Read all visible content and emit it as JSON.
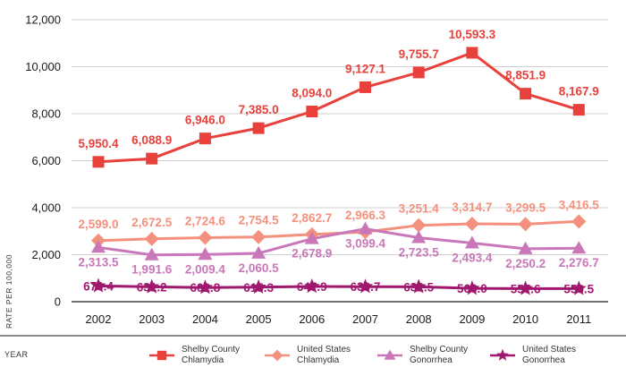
{
  "chart_data": {
    "type": "line",
    "xlabel": "YEAR",
    "ylabel": "RATE PER 100,000",
    "ylim": [
      0,
      12000
    ],
    "yticks": [
      0,
      2000,
      4000,
      6000,
      8000,
      10000,
      12000
    ],
    "ytick_labels": [
      "0",
      "2,000",
      "4,000",
      "6,000",
      "8,000",
      "10,000",
      "12,000"
    ],
    "grid": "horizontal",
    "legend_position": "bottom",
    "categories": [
      "2002",
      "2003",
      "2004",
      "2005",
      "2006",
      "2007",
      "2008",
      "2009",
      "2010",
      "2011"
    ],
    "series": [
      {
        "name_lines": [
          "Shelby County",
          "Chlamydia"
        ],
        "marker": "square",
        "color": "#e8413c",
        "values": [
          5950.4,
          6088.9,
          6946.0,
          7385.0,
          8094.0,
          9127.1,
          9755.7,
          10593.3,
          8851.9,
          8167.9
        ],
        "labels": [
          "5,950.4",
          "6,088.9",
          "6,946.0",
          "7,385.0",
          "8,094.0",
          "9,127.1",
          "9,755.7",
          "10,593.3",
          "8,851.9",
          "8,167.9"
        ]
      },
      {
        "name_lines": [
          "United States",
          "Chlamydia"
        ],
        "marker": "diamond",
        "color": "#f4917e",
        "values": [
          2599.0,
          2672.5,
          2724.6,
          2754.5,
          2862.7,
          2966.3,
          3251.4,
          3314.7,
          3299.5,
          3416.5
        ],
        "labels": [
          "2,599.0",
          "2,672.5",
          "2,724.6",
          "2,754.5",
          "2,862.7",
          "2,966.3",
          "3,251.4",
          "3,314.7",
          "3,299.5",
          "3,416.5"
        ]
      },
      {
        "name_lines": [
          "Shelby County",
          "Gonorrhea"
        ],
        "marker": "triangle",
        "color": "#c977b8",
        "values": [
          2313.5,
          1991.6,
          2009.4,
          2060.5,
          2678.9,
          3099.4,
          2723.5,
          2493.4,
          2250.2,
          2276.7
        ],
        "labels": [
          "2,313.5",
          "1,991.6",
          "2,009.4",
          "2,060.5",
          "2,678.9",
          "3,099.4",
          "2,723.5",
          "2,493.4",
          "2,250.2",
          "2,276.7"
        ]
      },
      {
        "name_lines": [
          "United States",
          "Gonorrhea"
        ],
        "marker": "star",
        "color": "#a0186e",
        "values": [
          670.4,
          631.2,
          602.8,
          615.3,
          647.9,
          639.7,
          632.5,
          566.0,
          557.6,
          556.5
        ],
        "labels": [
          "670.4",
          "631.2",
          "602.8",
          "615.3",
          "647.9",
          "639.7",
          "632.5",
          "566.0",
          "557.6",
          "556.5"
        ]
      }
    ]
  }
}
